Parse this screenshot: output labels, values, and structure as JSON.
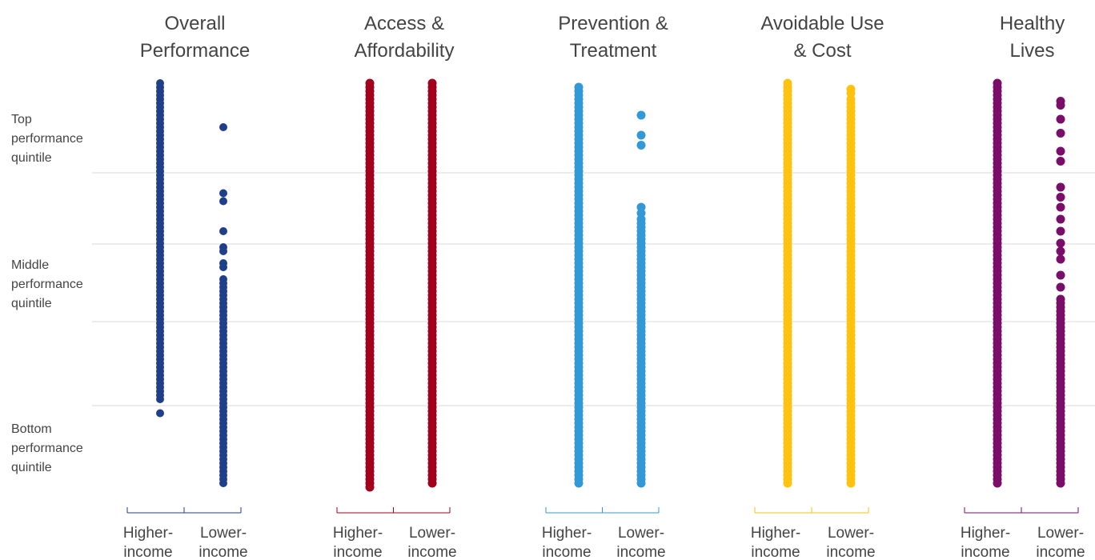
{
  "chart_data": {
    "type": "scatter",
    "y_categories": [
      {
        "lines": [
          "Top",
          "performance",
          "quintile"
        ]
      },
      {
        "lines": [
          "Middle",
          "performance",
          "quintile"
        ]
      },
      {
        "lines": [
          "Bottom",
          "performance",
          "quintile"
        ]
      }
    ],
    "ylim": [
      0,
      100
    ],
    "grid": true,
    "group_labels": [
      {
        "lines": [
          "Higher-",
          "income"
        ]
      },
      {
        "lines": [
          "Lower-",
          "income"
        ]
      }
    ],
    "panels": [
      {
        "title_lines": [
          "Overall",
          "Performance"
        ],
        "color": "#1f3f8a",
        "higher_income": [
          100,
          99,
          98,
          97,
          96,
          95,
          94,
          93,
          92,
          91,
          90,
          89,
          88,
          87,
          86,
          85,
          84,
          83,
          82,
          81,
          80,
          79,
          78,
          77,
          76,
          75,
          74,
          73,
          72,
          71,
          70,
          69,
          68,
          67,
          66,
          65,
          64,
          63,
          62,
          61,
          60,
          59,
          58,
          57,
          56,
          55,
          54,
          53,
          52,
          51,
          50,
          49,
          48,
          47,
          46,
          45,
          44,
          43,
          42,
          41,
          40,
          39,
          38,
          37,
          36,
          35,
          34,
          33,
          32,
          31,
          30,
          29,
          28,
          27,
          26,
          25,
          24,
          23,
          22,
          21,
          17.5
        ],
        "lower_income": [
          89,
          72.5,
          70.5,
          63,
          59,
          58,
          55,
          54,
          51,
          50,
          49,
          48,
          47,
          46,
          45,
          44,
          43,
          42,
          41,
          40,
          39,
          38,
          37,
          36,
          35,
          34,
          33,
          32,
          31,
          30,
          29,
          28,
          27,
          26,
          25,
          24,
          23,
          22,
          21,
          20,
          19,
          18,
          17,
          16,
          15,
          14,
          13,
          12,
          11,
          10,
          9,
          8,
          7,
          6,
          5,
          4,
          3,
          2,
          1,
          0
        ]
      },
      {
        "title_lines": [
          "Access &",
          "Affordability"
        ],
        "color": "#a3001e",
        "higher_income": [
          100,
          99,
          98,
          97,
          96,
          95,
          94,
          93,
          92,
          91,
          90,
          89,
          88,
          87,
          86,
          85,
          84,
          83,
          82,
          81,
          80,
          79,
          78,
          77,
          76,
          75,
          74,
          73,
          72,
          71,
          70,
          69,
          68,
          67,
          66,
          65,
          64,
          63,
          62,
          61,
          60,
          59,
          58,
          57,
          56,
          55,
          54,
          53,
          52,
          51,
          50,
          49,
          48,
          47,
          46,
          45,
          44,
          43,
          42,
          41,
          40,
          39,
          38,
          37,
          36,
          35,
          34,
          33,
          32,
          31,
          30,
          29,
          28,
          27,
          26,
          25,
          24,
          23,
          22,
          21,
          20,
          19,
          18,
          17,
          16,
          15,
          14,
          13,
          12,
          11,
          10,
          9,
          8,
          7,
          6,
          5,
          4,
          3,
          2,
          1,
          0,
          -1
        ],
        "lower_income": [
          100,
          99,
          98,
          97,
          96,
          95,
          94,
          93,
          92,
          91,
          90,
          89,
          88,
          87,
          86,
          85,
          84,
          83,
          82,
          81,
          80,
          79,
          78,
          77,
          76,
          75,
          74,
          73,
          72,
          71,
          70,
          69,
          68,
          67,
          66,
          65,
          64,
          63,
          62,
          61,
          60,
          59,
          58,
          57,
          56,
          55,
          54,
          53,
          52,
          51,
          50,
          49,
          48,
          47,
          46,
          45,
          44,
          43,
          42,
          41,
          40,
          39,
          38,
          37,
          36,
          35,
          34,
          33,
          32,
          31,
          30,
          29,
          28,
          27,
          26,
          25,
          24,
          23,
          22,
          21,
          20,
          19,
          18,
          17,
          16,
          15,
          14,
          13,
          12,
          11,
          10,
          9,
          8,
          7,
          6,
          5,
          4,
          3,
          2,
          1,
          0
        ]
      },
      {
        "title_lines": [
          "Prevention &",
          "Treatment"
        ],
        "color": "#3399d6",
        "higher_income": [
          99,
          98,
          97,
          96,
          95,
          94,
          93,
          92,
          91,
          90,
          89,
          88,
          87,
          86,
          85,
          84,
          83,
          82,
          81,
          80,
          79,
          78,
          77,
          76,
          75,
          74,
          73,
          72,
          71,
          70,
          69,
          68,
          67,
          66,
          65,
          64,
          63,
          62,
          61,
          60,
          59,
          58,
          57,
          56,
          55,
          54,
          53,
          52,
          51,
          50,
          49,
          48,
          47,
          46,
          45,
          44,
          43,
          42,
          41,
          40,
          39,
          38,
          37,
          36,
          35,
          34,
          33,
          32,
          31,
          30,
          29,
          28,
          27,
          26,
          25,
          24,
          23,
          22,
          21,
          20,
          19,
          18,
          17,
          16,
          15,
          14,
          13,
          12,
          11,
          10,
          9,
          8,
          7,
          6,
          5,
          4,
          3,
          2,
          1,
          0
        ],
        "lower_income": [
          92,
          87,
          84.5,
          69,
          67.5,
          66,
          65,
          64,
          63,
          62,
          61,
          60,
          59,
          58,
          57,
          56,
          55,
          54,
          53,
          52,
          51,
          50,
          49,
          48,
          47,
          46,
          45,
          44,
          43,
          42,
          41,
          40,
          39,
          38,
          37,
          36,
          35,
          34,
          33,
          32,
          31,
          30,
          29,
          28,
          27,
          26,
          25,
          24,
          23,
          22,
          21,
          20,
          19,
          18,
          17,
          16,
          15,
          14,
          13,
          12,
          11,
          10,
          9,
          8,
          7,
          6,
          5,
          4,
          3,
          2,
          1,
          0
        ]
      },
      {
        "title_lines": [
          "Avoidable Use",
          "& Cost"
        ],
        "color": "#ffc20e",
        "higher_income": [
          100,
          99,
          98,
          97,
          96,
          95,
          94,
          93,
          92,
          91,
          90,
          89,
          88,
          87,
          86,
          85,
          84,
          83,
          82,
          81,
          80,
          79,
          78,
          77,
          76,
          75,
          74,
          73,
          72,
          71,
          70,
          69,
          68,
          67,
          66,
          65,
          64,
          63,
          62,
          61,
          60,
          59,
          58,
          57,
          56,
          55,
          54,
          53,
          52,
          51,
          50,
          49,
          48,
          47,
          46,
          45,
          44,
          43,
          42,
          41,
          40,
          39,
          38,
          37,
          36,
          35,
          34,
          33,
          32,
          31,
          30,
          29,
          28,
          27,
          26,
          25,
          24,
          23,
          22,
          21,
          20,
          19,
          18,
          17,
          16,
          15,
          14,
          13,
          12,
          11,
          10,
          9,
          8,
          7,
          6,
          5,
          4,
          3,
          2,
          1,
          0
        ],
        "lower_income": [
          98.5,
          97.5,
          96,
          95,
          94,
          93,
          92,
          91,
          90,
          89,
          88,
          87,
          86,
          85,
          84,
          83,
          82,
          81,
          80,
          79,
          78,
          77,
          76,
          75,
          74,
          73,
          72,
          71,
          70,
          69,
          68,
          67,
          66,
          65,
          64,
          63,
          62,
          61,
          60,
          59,
          58,
          57,
          56,
          55,
          54,
          53,
          52,
          51,
          50,
          49,
          48,
          47,
          46,
          45,
          44,
          43,
          42,
          41,
          40,
          39,
          38,
          37,
          36,
          35,
          34,
          33,
          32,
          31,
          30,
          29,
          28,
          27,
          26,
          25,
          24,
          23,
          22,
          21,
          20,
          19,
          18,
          17,
          16,
          15,
          14,
          13,
          12,
          11,
          10,
          9,
          8,
          7,
          6,
          5,
          4,
          3,
          2,
          1,
          0
        ]
      },
      {
        "title_lines": [
          "Healthy",
          "Lives"
        ],
        "color": "#7a0d6a",
        "higher_income": [
          100,
          99,
          98,
          97,
          96,
          95,
          94,
          93,
          92,
          91,
          90,
          89,
          88,
          87,
          86,
          85,
          84,
          83,
          82,
          81,
          80,
          79,
          78,
          77,
          76,
          75,
          74,
          73,
          72,
          71,
          70,
          69,
          68,
          67,
          66,
          65,
          64,
          63,
          62,
          61,
          60,
          59,
          58,
          57,
          56,
          55,
          54,
          53,
          52,
          51,
          50,
          49,
          48,
          47,
          46,
          45,
          44,
          43,
          42,
          41,
          40,
          39,
          38,
          37,
          36,
          35,
          34,
          33,
          32,
          31,
          30,
          29,
          28,
          27,
          26,
          25,
          24,
          23,
          22,
          21,
          20,
          19,
          18,
          17,
          16,
          15,
          14,
          13,
          12,
          11,
          10,
          9,
          8,
          7,
          6,
          5,
          4,
          3,
          2,
          1,
          0
        ],
        "lower_income": [
          95.5,
          94.5,
          91,
          87.5,
          83,
          80.5,
          74,
          71.5,
          69,
          66,
          63,
          60,
          58,
          56,
          52,
          49,
          46,
          45,
          44,
          43,
          42,
          41,
          40,
          39,
          38,
          37,
          36,
          35,
          34,
          33,
          32,
          31,
          30,
          29,
          28,
          27,
          26,
          25,
          24,
          23,
          22,
          21,
          20,
          19,
          18,
          17,
          16,
          15,
          14,
          13,
          12,
          11,
          10,
          9,
          8,
          7,
          6,
          5,
          4,
          3,
          2,
          1,
          0
        ]
      }
    ]
  }
}
